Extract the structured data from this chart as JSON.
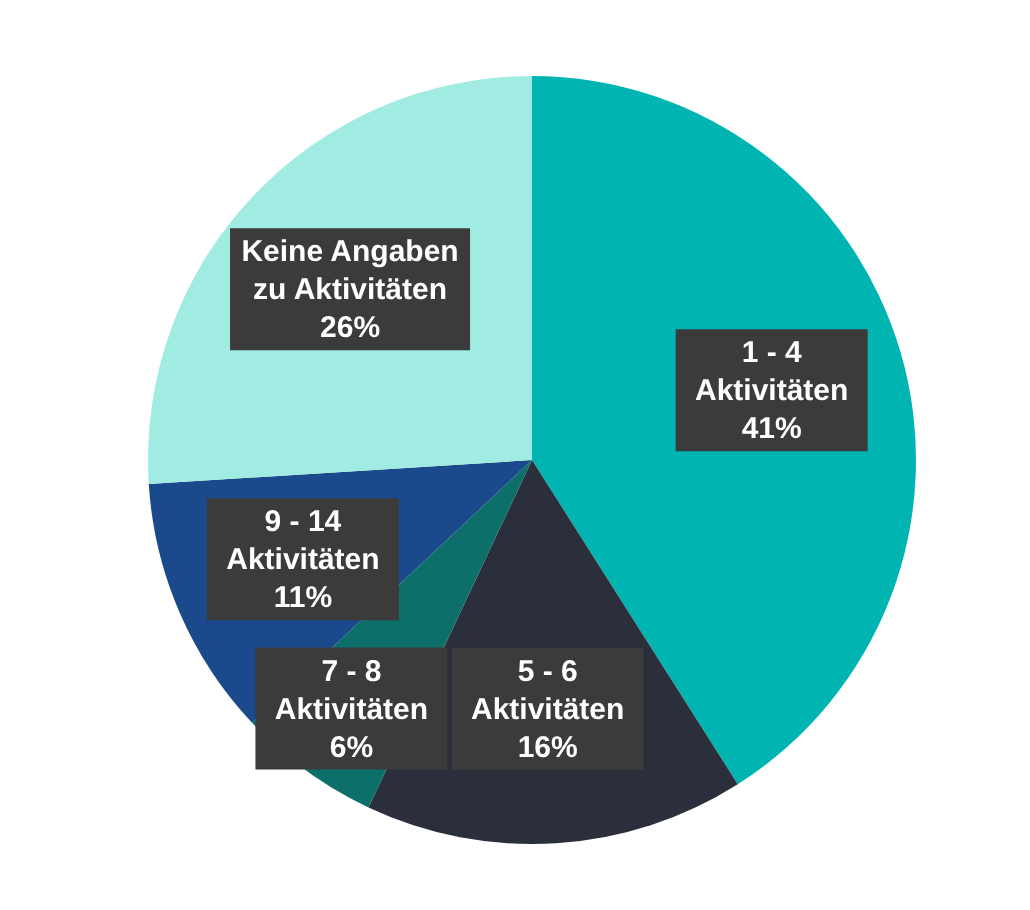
{
  "chart_data": {
    "type": "pie",
    "categories": [
      "1 - 4 Aktivitäten",
      "5 - 6 Aktivitäten",
      "7 - 8 Aktivitäten",
      "9 - 14 Aktivitäten",
      "Keine Angaben zu Aktivitäten"
    ],
    "values": [
      41,
      16,
      6,
      11,
      26
    ],
    "value_labels": [
      "41%",
      "16%",
      "6%",
      "11%",
      "26%"
    ],
    "colors": [
      "#00b5b1",
      "#2b2f3b",
      "#0c6f6a",
      "#1b4a8c",
      "#a0ebe2"
    ]
  }
}
